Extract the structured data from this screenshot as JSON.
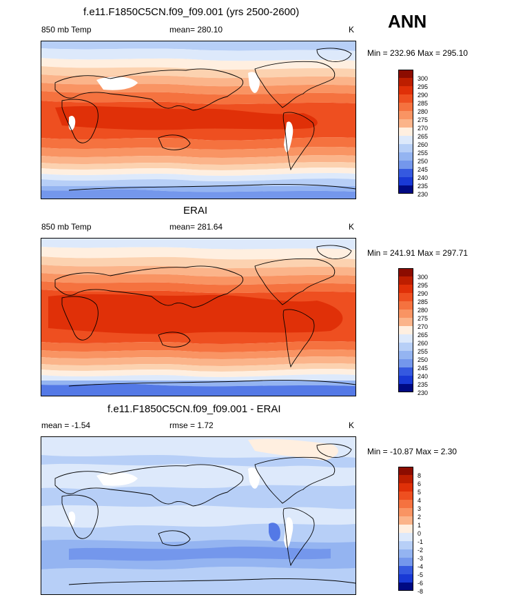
{
  "season": "ANN",
  "colors": {
    "positive_palette": [
      "#ffefe0",
      "#fcd2b0",
      "#fbb48a",
      "#f99463",
      "#f5723f",
      "#ee4f20",
      "#e03008",
      "#bd1e00",
      "#8c0c00"
    ],
    "negative_palette": [
      "#dde9fb",
      "#b7cff7",
      "#94b4f1",
      "#7497ec",
      "#5479e6",
      "#3559e0",
      "#1939d5",
      "#0818b0",
      "#000a83"
    ]
  },
  "chart_data": [
    {
      "type": "heatmap",
      "title": "f.e11.F1850C5CN.f09_f09.001 (yrs 2500-2600)",
      "left_label": "850 mb Temp",
      "center_label": "mean= 280.10",
      "units": "K",
      "stats": "Min = 232.96 Max = 295.10",
      "colorbar_levels": [
        "300",
        "295",
        "290",
        "285",
        "280",
        "275",
        "270",
        "265",
        "260",
        "255",
        "250",
        "245",
        "240",
        "235",
        "230"
      ]
    },
    {
      "type": "heatmap",
      "title": "ERAI",
      "left_label": "850 mb Temp",
      "center_label": "mean= 281.64",
      "units": "K",
      "stats": "Min = 241.91 Max = 297.71",
      "colorbar_levels": [
        "300",
        "295",
        "290",
        "285",
        "280",
        "275",
        "270",
        "265",
        "260",
        "255",
        "250",
        "245",
        "240",
        "235",
        "230"
      ]
    },
    {
      "type": "heatmap",
      "title": "f.e11.F1850C5CN.f09_f09.001 - ERAI",
      "left_label": "mean =  -1.54",
      "center_label": "rmse =   1.72",
      "units": "K",
      "stats": "Min = -10.87 Max =   2.30",
      "colorbar_levels": [
        "8",
        "6",
        "5",
        "4",
        "3",
        "2",
        "1",
        "0",
        "-1",
        "-2",
        "-3",
        "-4",
        "-5",
        "-6",
        "-8"
      ]
    }
  ]
}
